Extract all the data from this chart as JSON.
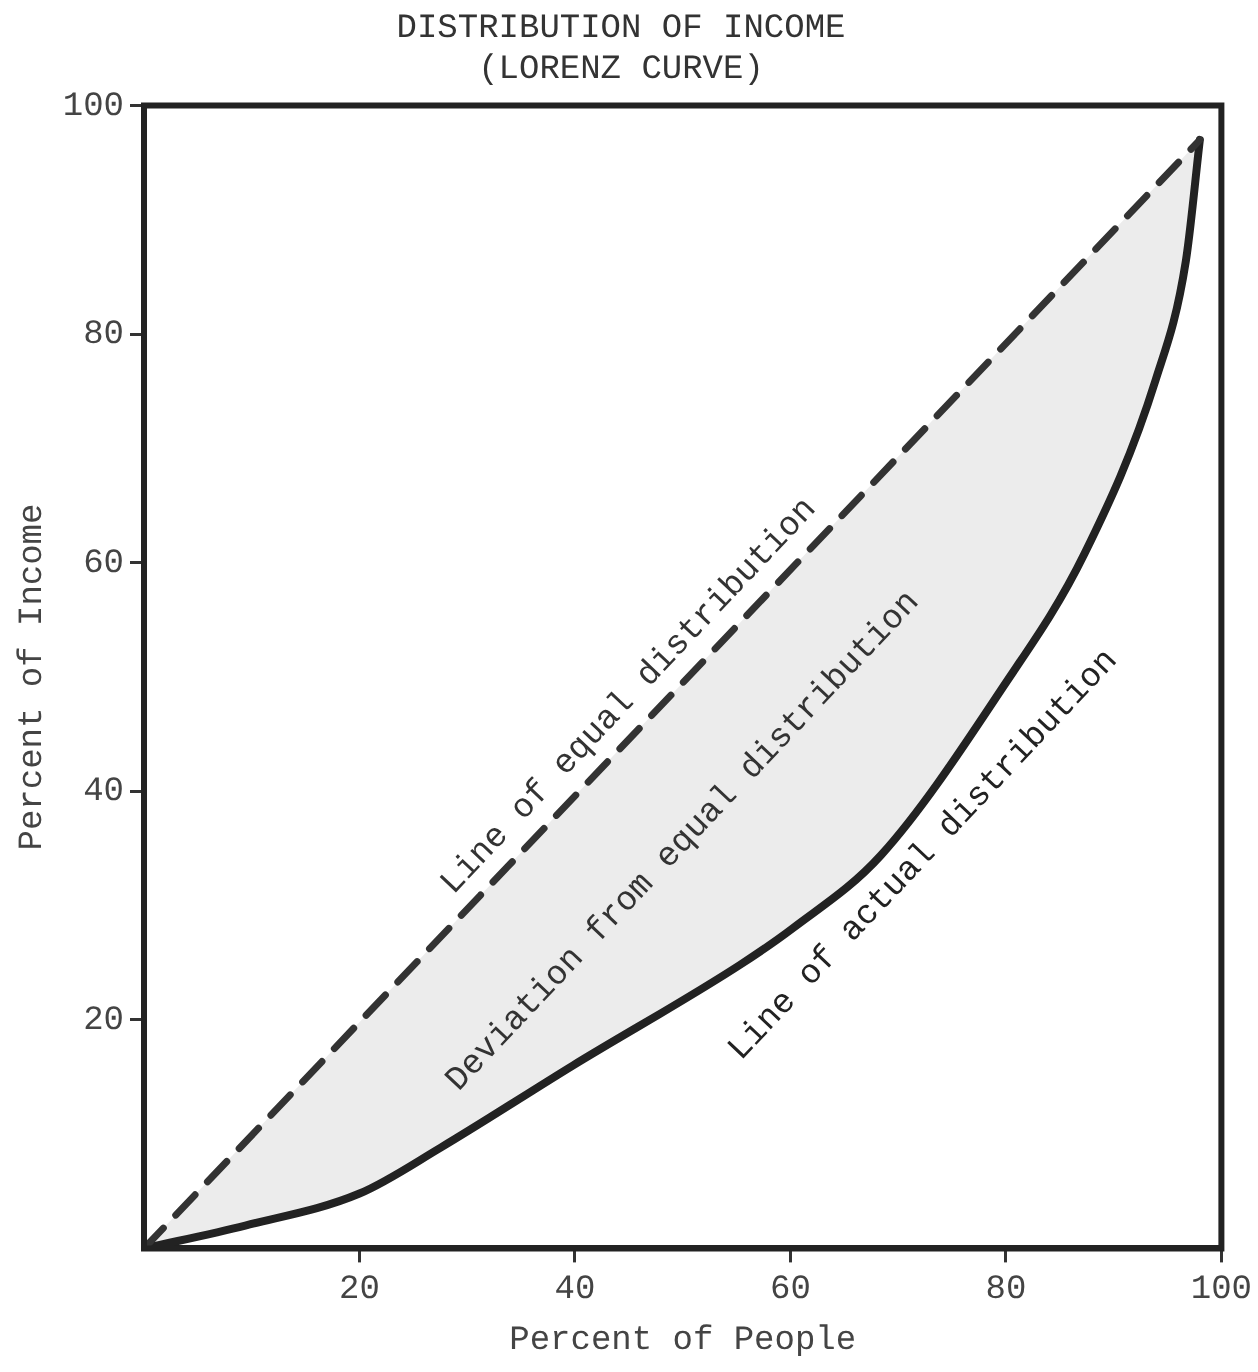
{
  "chart_data": {
    "type": "line",
    "title": "DISTRIBUTION OF INCOME",
    "subtitle": "(LORENZ CURVE)",
    "xlabel": "Percent of People",
    "ylabel": "Percent of Income",
    "xlim": [
      0,
      100
    ],
    "ylim": [
      0,
      100
    ],
    "xticks": [
      20,
      40,
      60,
      80,
      100
    ],
    "yticks": [
      20,
      40,
      60,
      80,
      100
    ],
    "grid": false,
    "legend": false,
    "marker": "none",
    "series": [
      {
        "name": "Line of equal distribution",
        "color": "#333333",
        "line_style": "dashed",
        "x": [
          0,
          98
        ],
        "values": [
          0,
          97
        ]
      },
      {
        "name": "Line of actual distribution",
        "color": "#222222",
        "line_style": "solid",
        "x": [
          0,
          9.4,
          20,
          27.5,
          39.8,
          55.3,
          60.2,
          68.4,
          79.5,
          87.3,
          93.9,
          96.7,
          98
        ],
        "values": [
          0,
          2,
          4.8,
          8.8,
          16,
          24.8,
          28,
          34.4,
          48.8,
          60.8,
          76,
          86.4,
          97
        ]
      }
    ],
    "annotations": [
      "Deviation from equal distribution"
    ]
  }
}
